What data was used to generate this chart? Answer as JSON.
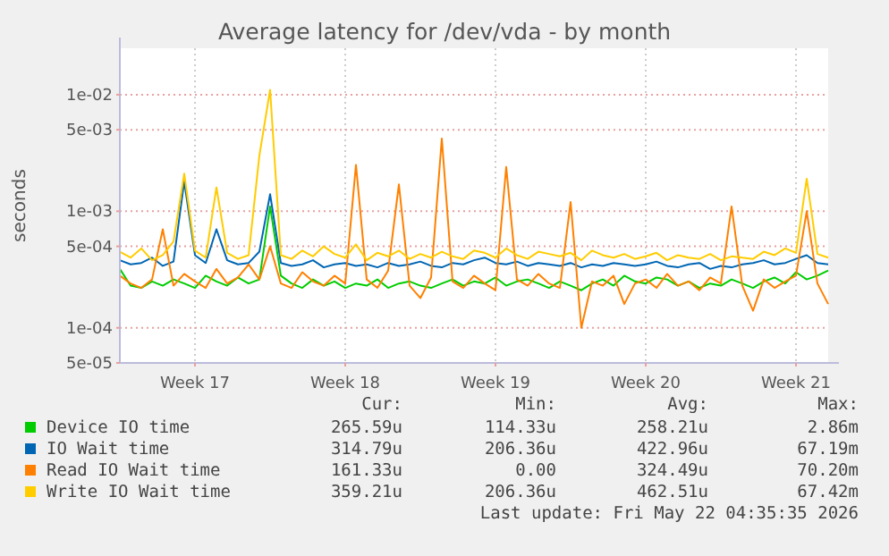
{
  "chart_data": {
    "type": "line",
    "title": "Average latency for /dev/vda - by month",
    "ylabel": "seconds",
    "log": true,
    "grid": true,
    "legend": "bottom",
    "line_style": "solid",
    "ylim": [
      5e-05,
      0.025
    ],
    "yticks": [
      {
        "value": 5e-05,
        "label": "5e-05"
      },
      {
        "value": 0.0001,
        "label": "1e-04"
      },
      {
        "value": 0.0005,
        "label": "5e-04"
      },
      {
        "value": 0.001,
        "label": "1e-03"
      },
      {
        "value": 0.005,
        "label": "5e-03"
      },
      {
        "value": 0.01,
        "label": "1e-02"
      }
    ],
    "categories": [
      null,
      null,
      null,
      null,
      null,
      null,
      null,
      "Week 17",
      null,
      null,
      null,
      null,
      null,
      null,
      null,
      null,
      null,
      null,
      null,
      null,
      null,
      "Week 18",
      null,
      null,
      null,
      null,
      null,
      null,
      null,
      null,
      null,
      null,
      null,
      null,
      null,
      "Week 19",
      null,
      null,
      null,
      null,
      null,
      null,
      null,
      null,
      null,
      null,
      null,
      null,
      null,
      "Week 20",
      null,
      null,
      null,
      null,
      null,
      null,
      null,
      null,
      null,
      null,
      null,
      null,
      null,
      "Week 21",
      null,
      null,
      null
    ],
    "series": [
      {
        "name": "Device IO time",
        "color": "#00cc00",
        "values": [
          0.00032,
          0.00023,
          0.00022,
          0.00025,
          0.00023,
          0.00026,
          0.00024,
          0.00022,
          0.00028,
          0.00025,
          0.00023,
          0.00027,
          0.00024,
          0.00026,
          0.0011,
          0.00028,
          0.00024,
          0.00022,
          0.00026,
          0.00023,
          0.00025,
          0.00022,
          0.00024,
          0.00023,
          0.00026,
          0.00022,
          0.00024,
          0.00025,
          0.00023,
          0.00022,
          0.00024,
          0.00026,
          0.00023,
          0.00025,
          0.00024,
          0.00027,
          0.00023,
          0.00025,
          0.00026,
          0.00024,
          0.00022,
          0.00025,
          0.00023,
          0.00021,
          0.00024,
          0.00026,
          0.00023,
          0.00028,
          0.00025,
          0.00024,
          0.00027,
          0.00026,
          0.00023,
          0.00025,
          0.00022,
          0.00024,
          0.00023,
          0.00026,
          0.00024,
          0.00022,
          0.00025,
          0.00027,
          0.00024,
          0.0003,
          0.00026,
          0.00028,
          0.00031
        ]
      },
      {
        "name": "IO Wait time",
        "color": "#0066b3",
        "values": [
          0.00038,
          0.00035,
          0.00036,
          0.0004,
          0.00034,
          0.00037,
          0.0018,
          0.00042,
          0.00036,
          0.0007,
          0.00038,
          0.00035,
          0.00036,
          0.00045,
          0.0014,
          0.00036,
          0.00034,
          0.00035,
          0.00038,
          0.00033,
          0.00035,
          0.00036,
          0.00034,
          0.00035,
          0.00033,
          0.00036,
          0.00034,
          0.00035,
          0.00037,
          0.00034,
          0.00033,
          0.00036,
          0.00035,
          0.00038,
          0.0004,
          0.00036,
          0.00035,
          0.00037,
          0.00034,
          0.00036,
          0.00035,
          0.00034,
          0.00036,
          0.00033,
          0.00035,
          0.00034,
          0.00036,
          0.00035,
          0.00034,
          0.00035,
          0.00037,
          0.00034,
          0.00033,
          0.00035,
          0.00036,
          0.00032,
          0.00034,
          0.00033,
          0.00035,
          0.00036,
          0.00038,
          0.00035,
          0.00036,
          0.00039,
          0.00042,
          0.00036,
          0.00035
        ]
      },
      {
        "name": "Read IO Wait time",
        "color": "#ff8000",
        "values": [
          0.00028,
          0.00024,
          0.00022,
          0.00026,
          0.0007,
          0.00023,
          0.00029,
          0.00025,
          0.00022,
          0.00032,
          0.00024,
          0.00027,
          0.00035,
          0.00026,
          0.0005,
          0.00024,
          0.00022,
          0.0003,
          0.00025,
          0.00023,
          0.00028,
          0.00024,
          0.0025,
          0.00026,
          0.00022,
          0.00031,
          0.0017,
          0.00023,
          0.00018,
          0.00027,
          0.0042,
          0.00025,
          0.00022,
          0.00028,
          0.00024,
          0.00021,
          0.0024,
          0.00026,
          0.00023,
          0.00029,
          0.00024,
          0.00022,
          0.0012,
          0.0001,
          0.00025,
          0.00023,
          0.00028,
          0.00016,
          0.00024,
          0.00026,
          0.00022,
          0.00029,
          0.00023,
          0.00025,
          0.00021,
          0.00027,
          0.00024,
          0.0011,
          0.00023,
          0.00014,
          0.00026,
          0.00022,
          0.00025,
          0.00028,
          0.001,
          0.00024,
          0.00016
        ]
      },
      {
        "name": "Write IO Wait time",
        "color": "#ffcc00",
        "values": [
          0.00045,
          0.0004,
          0.00048,
          0.00038,
          0.00042,
          0.00055,
          0.0021,
          0.00046,
          0.0004,
          0.0016,
          0.00044,
          0.00039,
          0.00042,
          0.003,
          0.011,
          0.00042,
          0.00039,
          0.00046,
          0.00041,
          0.0005,
          0.00043,
          0.0004,
          0.00052,
          0.00038,
          0.00044,
          0.00041,
          0.00046,
          0.00039,
          0.00043,
          0.0004,
          0.00045,
          0.00041,
          0.00039,
          0.00046,
          0.00044,
          0.0004,
          0.00048,
          0.00042,
          0.00039,
          0.00045,
          0.00043,
          0.00041,
          0.00044,
          0.00038,
          0.00046,
          0.00042,
          0.0004,
          0.00043,
          0.00039,
          0.00041,
          0.00044,
          0.00038,
          0.00042,
          0.0004,
          0.00039,
          0.00043,
          0.00038,
          0.00041,
          0.0004,
          0.00039,
          0.00045,
          0.00042,
          0.00048,
          0.00044,
          0.0019,
          0.00043,
          0.0004
        ]
      }
    ],
    "annotations": [
      "Cur:",
      "Min:",
      "Avg:",
      "Max:",
      "265.59u",
      "114.33u",
      "258.21u",
      "2.86m",
      "314.79u",
      "206.36u",
      "422.96u",
      "67.19m",
      "161.33u",
      "0.00",
      "324.49u",
      "70.20m",
      "359.21u",
      "206.36u",
      "462.51u",
      "67.42m",
      "Last update: Fri May 22 04:35:35 2026"
    ]
  }
}
